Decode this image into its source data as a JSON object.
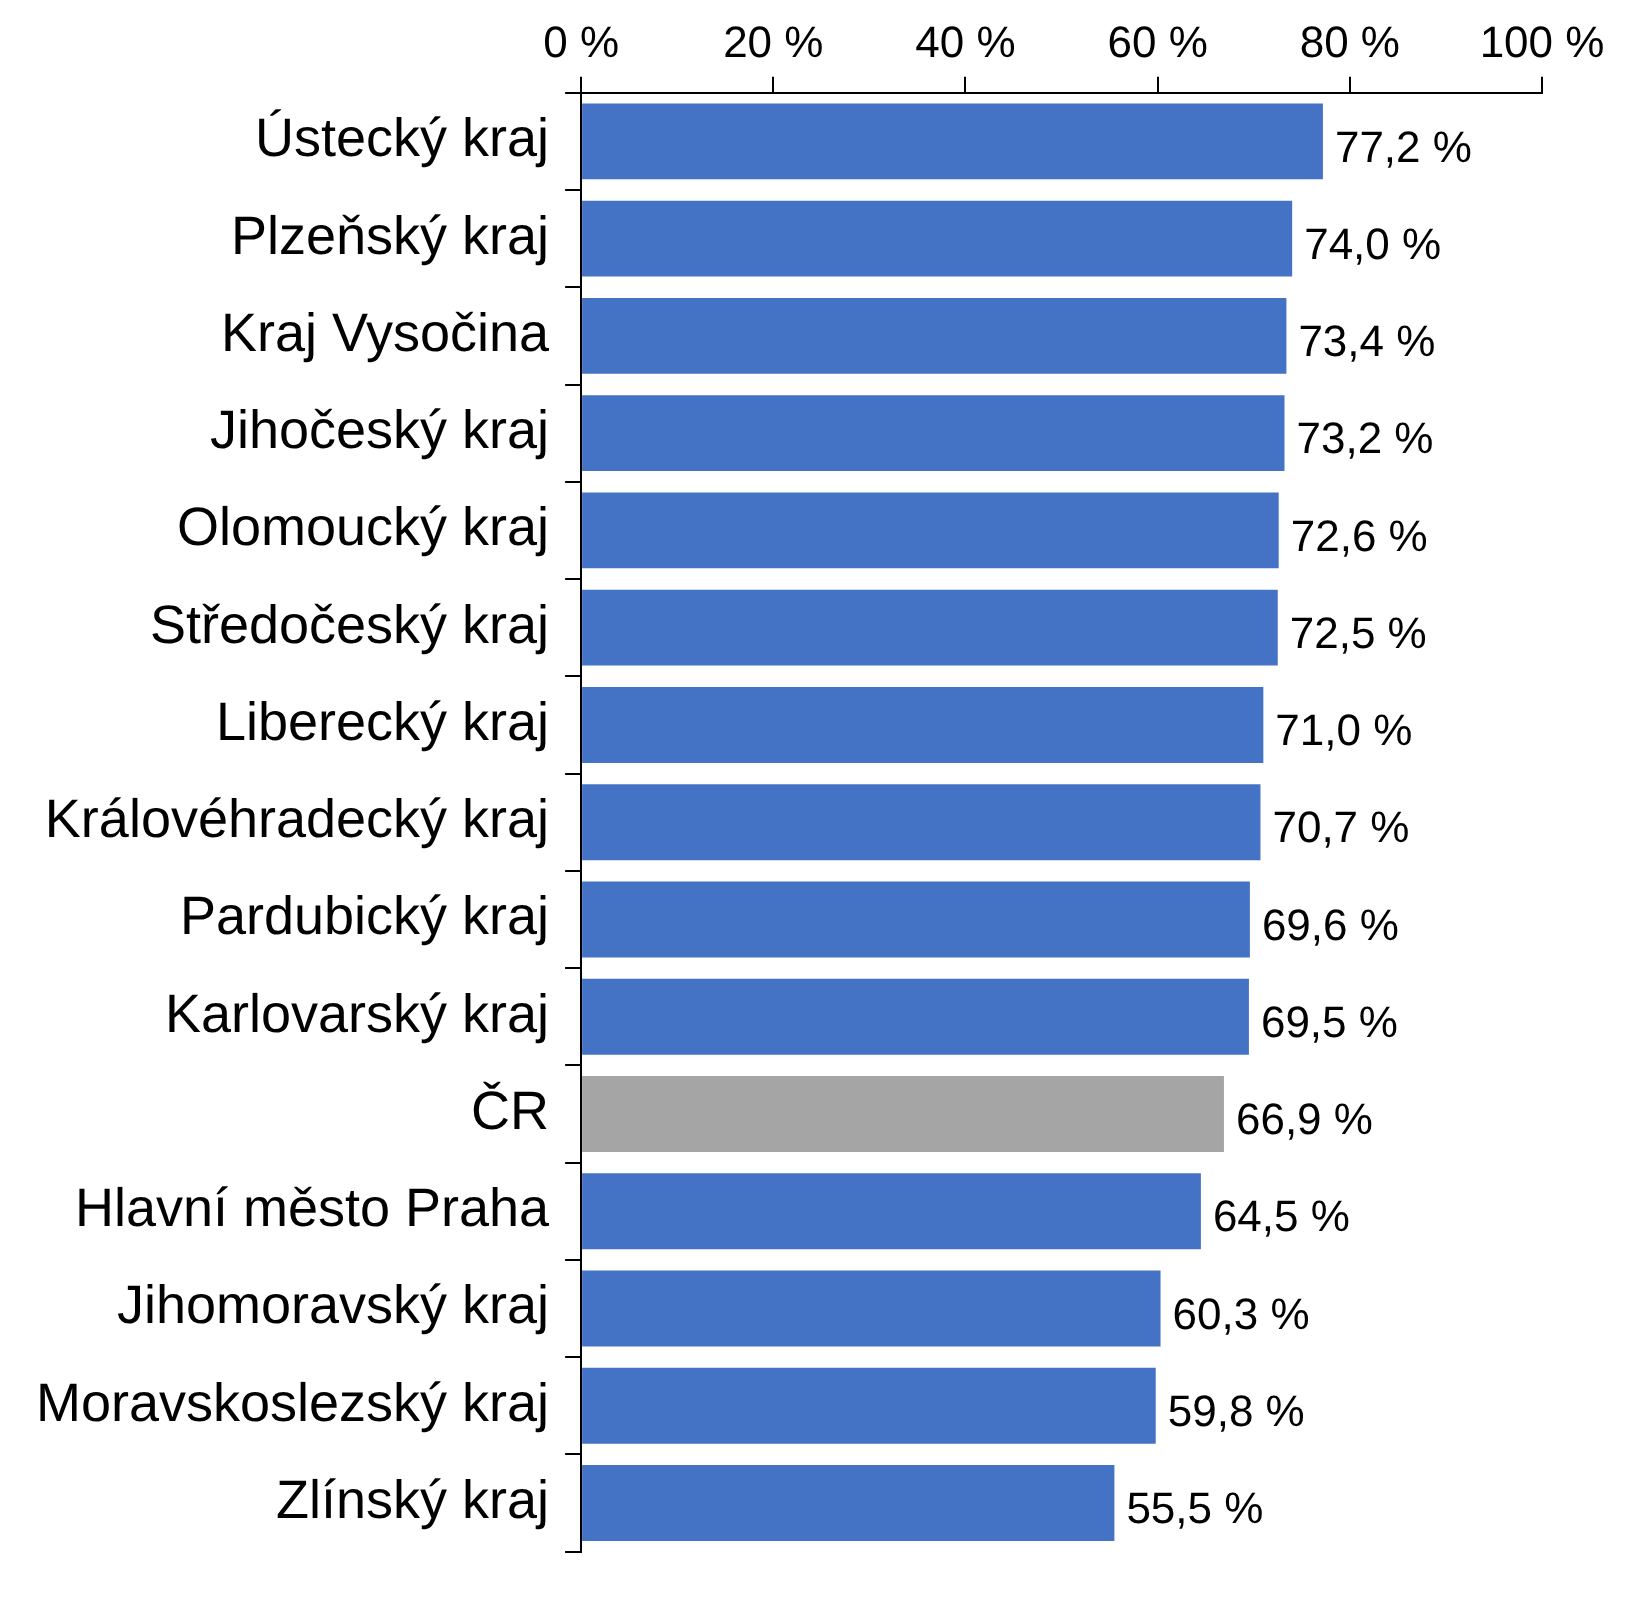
{
  "chart_data": {
    "type": "bar",
    "orientation": "horizontal",
    "categories": [
      "Ústecký kraj",
      "Plzeňský kraj",
      "Kraj Vysočina",
      "Jihočeský kraj",
      "Olomoucký kraj",
      "Středočeský kraj",
      "Liberecký kraj",
      "Královéhradecký kraj",
      "Pardubický kraj",
      "Karlovarský kraj",
      "ČR",
      "Hlavní město Praha",
      "Jihomoravský kraj",
      "Moravskoslezský kraj",
      "Zlínský kraj"
    ],
    "values": [
      77.2,
      74.0,
      73.4,
      73.2,
      72.6,
      72.5,
      71.0,
      70.7,
      69.6,
      69.5,
      66.9,
      64.5,
      60.3,
      59.8,
      55.5
    ],
    "colors": [
      "#4472c4",
      "#4472c4",
      "#4472c4",
      "#4472c4",
      "#4472c4",
      "#4472c4",
      "#4472c4",
      "#4472c4",
      "#4472c4",
      "#4472c4",
      "#a5a5a5",
      "#4472c4",
      "#4472c4",
      "#4472c4",
      "#4472c4"
    ],
    "value_labels": [
      "77,2 %",
      "74,0 %",
      "73,4 %",
      "73,2 %",
      "72,6 %",
      "72,5 %",
      "71,0 %",
      "70,7 %",
      "69,6 %",
      "69,5 %",
      "66,9 %",
      "64,5 %",
      "60,3 %",
      "59,8 %",
      "55,5 %"
    ],
    "xlim": [
      0,
      100
    ],
    "xticks": [
      {
        "value": 0,
        "label": "0 %"
      },
      {
        "value": 20,
        "label": "20 %"
      },
      {
        "value": 40,
        "label": "40 %"
      },
      {
        "value": 60,
        "label": "60 %"
      },
      {
        "value": 80,
        "label": "80 %"
      },
      {
        "value": 100,
        "label": "100 %"
      }
    ],
    "grid": false,
    "legend": false
  }
}
